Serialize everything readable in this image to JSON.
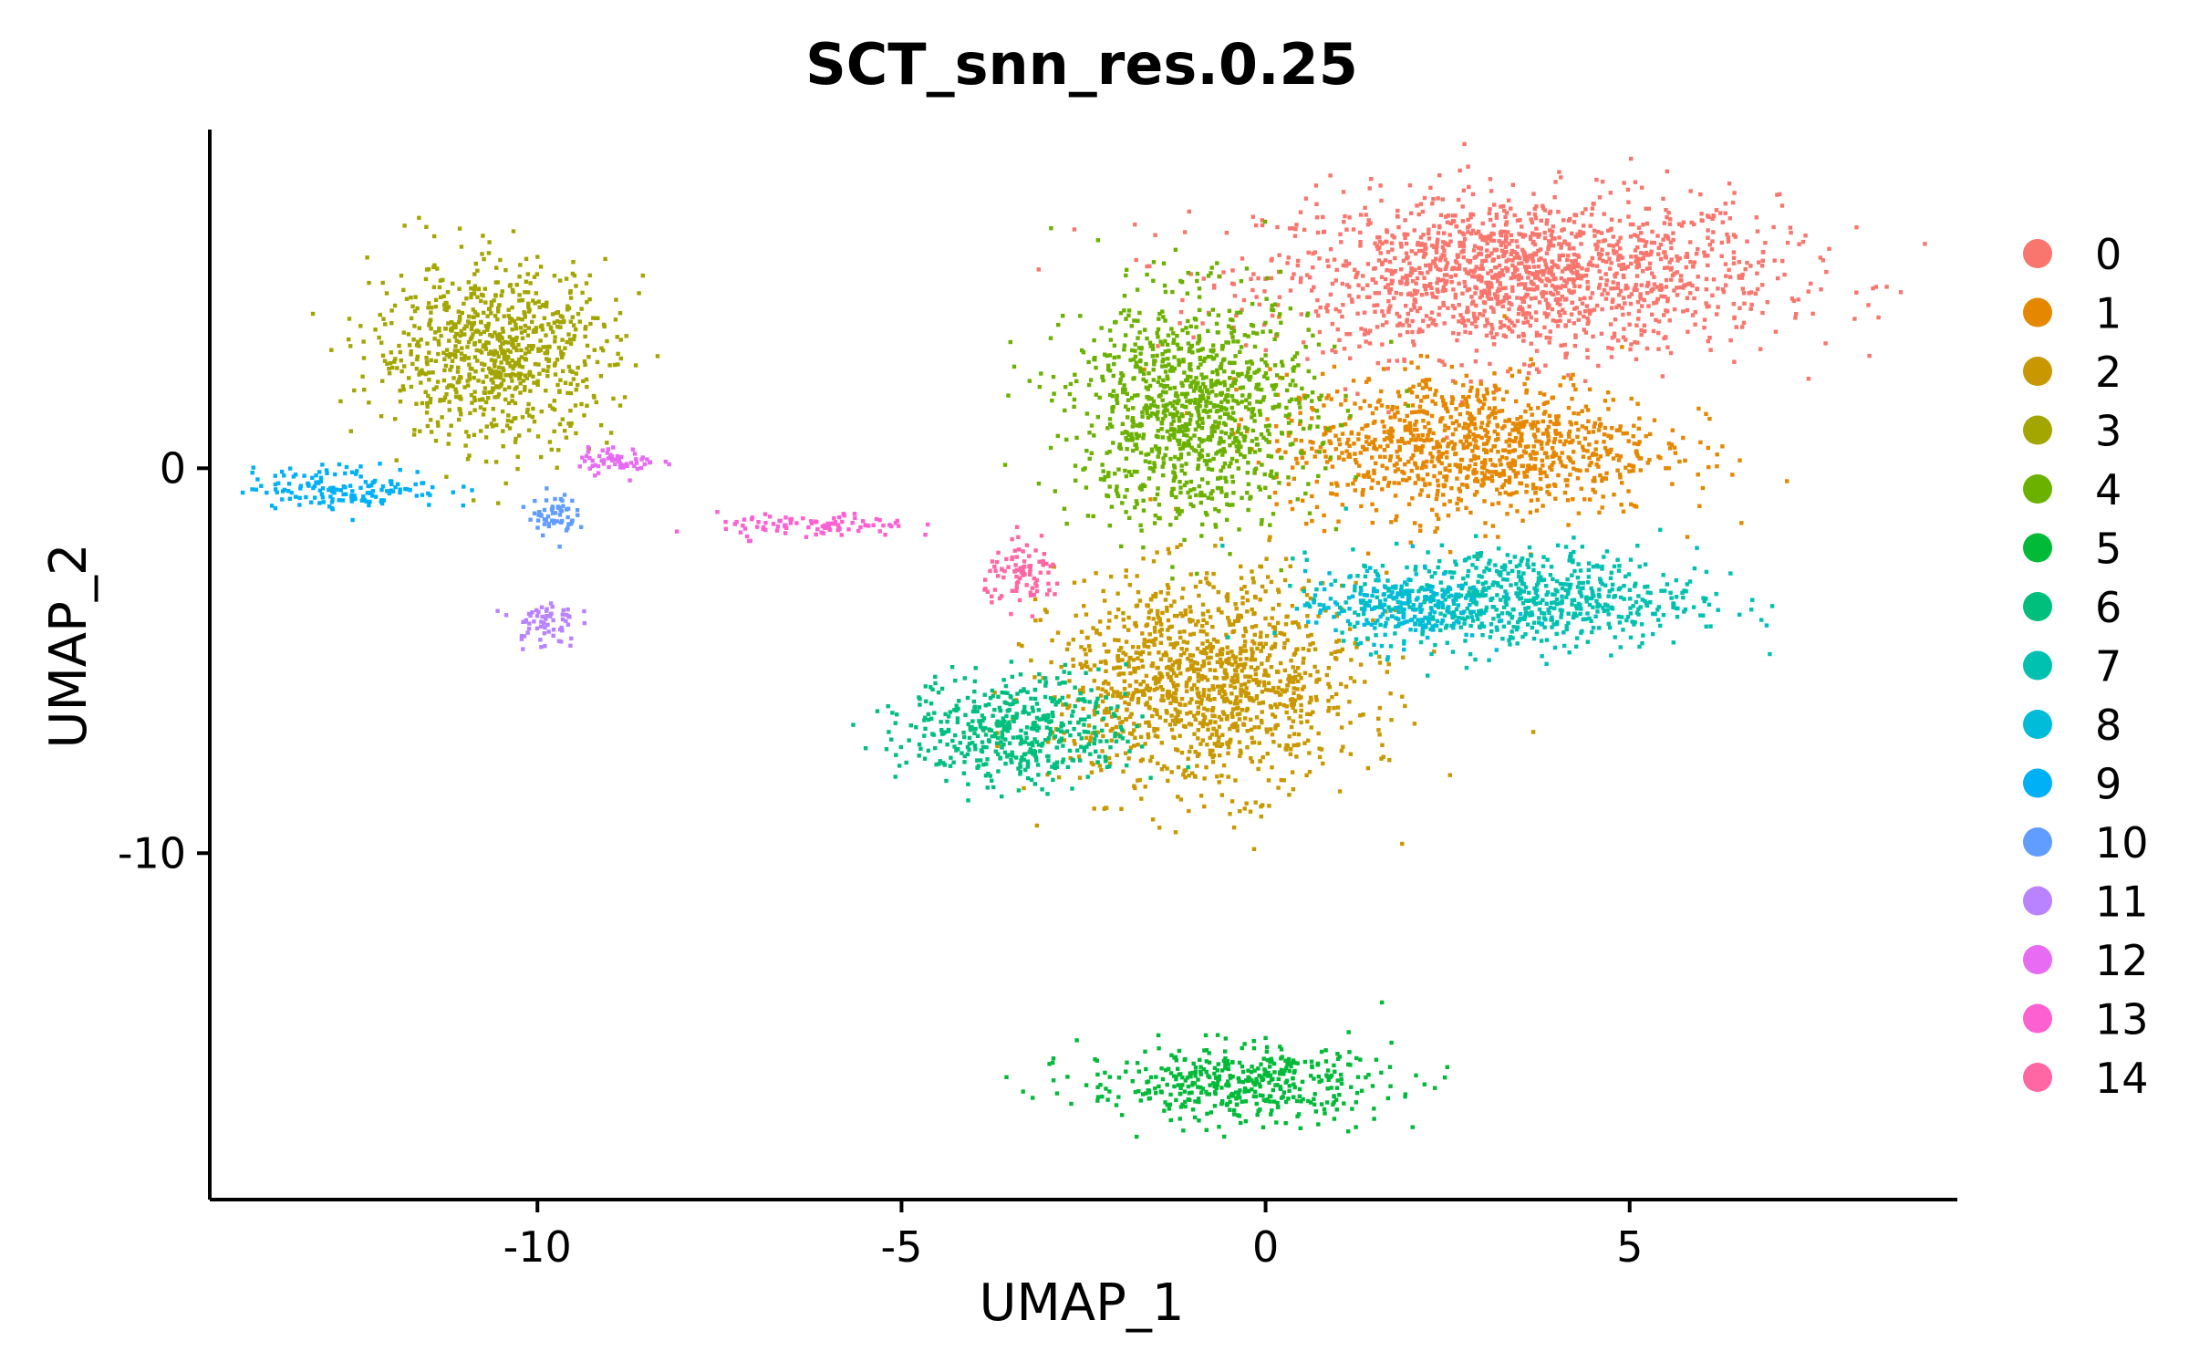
{
  "chart_data": {
    "type": "scatter",
    "title": "SCT_snn_res.0.25",
    "xlabel": "UMAP_1",
    "ylabel": "UMAP_2",
    "xlim": [
      -14.5,
      9.5
    ],
    "ylim": [
      -19,
      8.8
    ],
    "x_ticks": [
      -10,
      -5,
      0,
      5
    ],
    "x_tick_labels": [
      "-10",
      "-5",
      "0",
      "5"
    ],
    "y_ticks": [
      -10,
      0
    ],
    "y_tick_labels": [
      "-10",
      "0"
    ],
    "grid": false,
    "legend_position": "right",
    "series": [
      {
        "name": "0",
        "color": "#F8766D"
      },
      {
        "name": "1",
        "color": "#E58700"
      },
      {
        "name": "2",
        "color": "#C99800"
      },
      {
        "name": "3",
        "color": "#A3A500"
      },
      {
        "name": "4",
        "color": "#6BB100"
      },
      {
        "name": "5",
        "color": "#00BA38"
      },
      {
        "name": "6",
        "color": "#00BF7D"
      },
      {
        "name": "7",
        "color": "#00C0AF"
      },
      {
        "name": "8",
        "color": "#00BCD8"
      },
      {
        "name": "9",
        "color": "#00B0F6"
      },
      {
        "name": "10",
        "color": "#619CFF"
      },
      {
        "name": "11",
        "color": "#B983FF"
      },
      {
        "name": "12",
        "color": "#E76BF3"
      },
      {
        "name": "13",
        "color": "#FD61D1"
      },
      {
        "name": "14",
        "color": "#FF67A4"
      }
    ],
    "clusters": [
      {
        "cluster": "0",
        "center": [
          3.5,
          5.0
        ],
        "spread": [
          3.2,
          1.9
        ]
      },
      {
        "cluster": "1",
        "center": [
          2.8,
          0.6
        ],
        "spread": [
          2.4,
          1.7
        ]
      },
      {
        "cluster": "2",
        "center": [
          -0.8,
          -5.6
        ],
        "spread": [
          1.9,
          2.5
        ]
      },
      {
        "cluster": "3",
        "center": [
          -10.6,
          3.0
        ],
        "spread": [
          1.5,
          2.1
        ]
      },
      {
        "cluster": "4",
        "center": [
          -1.0,
          1.5
        ],
        "spread": [
          1.5,
          2.7
        ]
      },
      {
        "cluster": "5",
        "center": [
          -0.4,
          -16.0
        ],
        "spread": [
          1.9,
          0.9
        ]
      },
      {
        "cluster": "6",
        "center": [
          -3.4,
          -6.8
        ],
        "spread": [
          1.4,
          1.3
        ]
      },
      {
        "cluster": "7",
        "center": [
          3.5,
          -3.4
        ],
        "spread": [
          2.2,
          1.2
        ]
      },
      {
        "cluster": "8",
        "center": [
          1.8,
          -3.6
        ],
        "spread": [
          1.1,
          0.8
        ]
      },
      {
        "cluster": "9",
        "center": [
          -12.6,
          -0.5
        ],
        "spread": [
          1.2,
          0.5
        ]
      },
      {
        "cluster": "10",
        "center": [
          -9.8,
          -1.2
        ],
        "spread": [
          0.3,
          0.5
        ]
      },
      {
        "cluster": "11",
        "center": [
          -9.9,
          -4.0
        ],
        "spread": [
          0.4,
          0.6
        ]
      },
      {
        "cluster": "12",
        "center": [
          -8.9,
          0.2
        ],
        "spread": [
          0.5,
          0.3
        ]
      },
      {
        "cluster": "13",
        "center": [
          -6.2,
          -1.5
        ],
        "spread": [
          1.2,
          0.3
        ]
      },
      {
        "cluster": "14",
        "center": [
          -3.3,
          -2.8
        ],
        "spread": [
          0.5,
          0.7
        ]
      }
    ]
  }
}
